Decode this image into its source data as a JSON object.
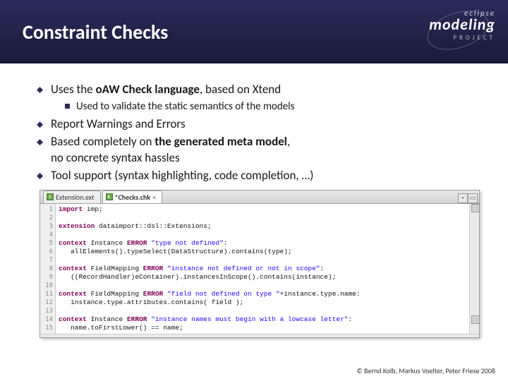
{
  "header": {
    "title": "Constraint Checks",
    "logo": {
      "line1": "eclipse",
      "line2": "modeling",
      "line3": "PROJECT"
    }
  },
  "bullets": {
    "b1_pre": "Uses the ",
    "b1_strong": "oAW Check language",
    "b1_post": ", based on Xtend",
    "b1_sub": "Used to validate the static semantics of the models",
    "b2": "Report Warnings and Errors",
    "b3_pre": "Based completely on ",
    "b3_strong": "the generated meta model",
    "b3_post": ",",
    "b3_line2": "no concrete syntax hassles",
    "b4": "Tool support (syntax highlighting, code completion, …)"
  },
  "tabs": {
    "t1": "Extension.ext",
    "t2": "*Checks.chk",
    "min": "▫",
    "max": "▭"
  },
  "code": {
    "lines": [
      "1",
      "2",
      "3",
      "4",
      "5",
      "6",
      "7",
      "8",
      "9",
      "10",
      "11",
      "12",
      "13",
      "14",
      "15"
    ],
    "l1_kw": "import",
    "l1_rest": " imp;",
    "l3_kw": "extension",
    "l3_rest": " dataimport::dsl::Extensions;",
    "l5_kw": "context",
    "l5_t": " Instance ",
    "l5_err": "ERROR",
    "l5_str": " \"type not defined\"",
    "l5_end": ":",
    "l6": "   allElements().typeSelect(DataStructure).contains(type);",
    "l8_kw": "context",
    "l8_t": " FieldMapping ",
    "l8_err": "ERROR",
    "l8_str": " \"instance not defined or not in scope\"",
    "l8_end": ":",
    "l9": "   ((RecordHandler)eContainer).instancesInScope().contains(instance);",
    "l11_kw": "context",
    "l11_t": " FieldMapping ",
    "l11_err": "ERROR",
    "l11_str": " \"field not defined on type \"",
    "l11_mid": "+instance.type.name:",
    "l12": "   instance.type.attributes.contains( field );",
    "l14_kw": "context",
    "l14_t": " Instance ",
    "l14_err": "ERROR",
    "l14_str": " \"instance names must begin with a lowcase letter\"",
    "l14_end": ":",
    "l15": "   name.toFirstLower() == name;"
  },
  "footer": "© Bernd Kolb, Markus Voelter, Peter Friese 2008"
}
